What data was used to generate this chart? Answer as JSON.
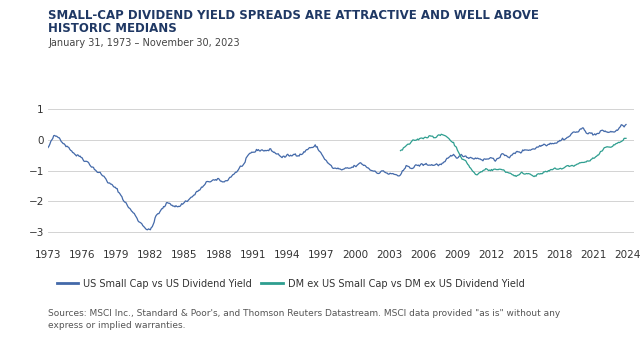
{
  "title_line1": "SMALL-CAP DIVIDEND YIELD SPREADS ARE ATTRACTIVE AND WELL ABOVE",
  "title_line2": "HISTORIC MEDIANS",
  "subtitle": "January 31, 1973 – November 30, 2023",
  "source_text": "Sources: MSCI Inc., Standard & Poor's, and Thomson Reuters Datastream. MSCI data provided \"as is\" without any\nexpress or implied warranties.",
  "line1_color": "#4369A9",
  "line2_color": "#2E9E8F",
  "line1_label": "US Small Cap vs US Dividend Yield",
  "line2_label": "DM ex US Small Cap vs DM ex US Dividend Yield",
  "ylim": [
    -3.5,
    1.4
  ],
  "yticks": [
    1,
    0,
    -1,
    -2,
    -3
  ],
  "xlim": [
    1973,
    2024.5
  ],
  "xticks": [
    1973,
    1976,
    1979,
    1982,
    1985,
    1988,
    1991,
    1994,
    1997,
    2000,
    2003,
    2006,
    2009,
    2012,
    2015,
    2018,
    2021,
    2024
  ],
  "bg_color": "#FFFFFF",
  "grid_color": "#CCCCCC",
  "title_color": "#1F3864",
  "subtitle_color": "#444444",
  "source_color": "#555555",
  "title_fontsize": 8.5,
  "subtitle_fontsize": 7.0,
  "source_fontsize": 6.5,
  "tick_fontsize": 7.5
}
